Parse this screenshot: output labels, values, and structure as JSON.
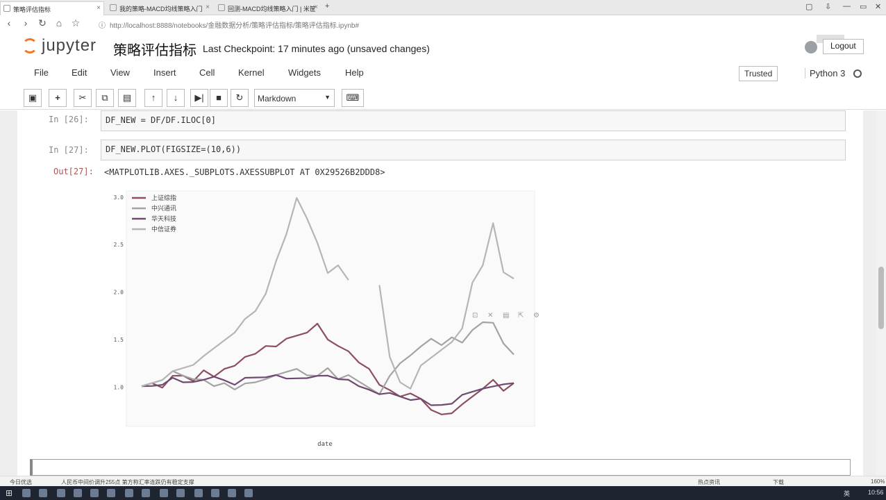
{
  "browser": {
    "tabs": [
      {
        "title": "策略评估指标",
        "active": true
      },
      {
        "title": "我的策略-MACD均线策略入门",
        "active": false
      },
      {
        "title": "回测-MACD均线策略入门 | 米筐",
        "active": false
      }
    ],
    "url": "http://localhost:8888/notebooks/金融数据分析/策略评估指标/策略评估指标.ipynb#",
    "url_host": "localhost"
  },
  "header": {
    "logo_text": "jupyter",
    "notebook_name": "策略评估指标",
    "checkpoint": "Last Checkpoint: 17 minutes ago (unsaved changes)",
    "logout_label": "Logout"
  },
  "menubar": {
    "items": [
      "File",
      "Edit",
      "View",
      "Insert",
      "Cell",
      "Kernel",
      "Widgets",
      "Help"
    ],
    "trusted_label": "Trusted",
    "kernel_label": "Python 3"
  },
  "toolbar": {
    "cell_type": "Markdown"
  },
  "cells": [
    {
      "prompt": "In  [26]:",
      "code": "DF_NEW = DF/DF.ILOC[0]"
    },
    {
      "prompt": "In  [27]:",
      "code": "DF_NEW.PLOT(FIGSIZE=(10,6))"
    }
  ],
  "output": {
    "prompt": "Out[27]:",
    "text": "<MATPLOTLIB.AXES._SUBPLOTS.AXESSUBPLOT AT 0X29526B2DDD8>"
  },
  "chart_data": {
    "type": "line",
    "xlabel": "date",
    "ylabel": "",
    "ylim": [
      0.6,
      3.05
    ],
    "yticks": [
      "3.0",
      "2.5",
      "2.0",
      "1.5",
      "1.0"
    ],
    "legend_position": "upper-left",
    "series": [
      {
        "name": "上证综指",
        "color": "#8c4f5f",
        "values": [
          1.0,
          1.05,
          1.02,
          1.1,
          1.12,
          1.08,
          1.15,
          1.1,
          1.2,
          1.25,
          1.3,
          1.35,
          1.45,
          1.4,
          1.5,
          1.55,
          1.6,
          1.65,
          1.5,
          1.45,
          1.35,
          1.25,
          1.2,
          1.05,
          0.95,
          0.9,
          0.95,
          0.85,
          0.75,
          0.72,
          0.75,
          0.8,
          0.9,
          1.0,
          1.05,
          0.95,
          1.05
        ]
      },
      {
        "name": "中兴通讯",
        "color": "#a3a3a3",
        "values": [
          1.0,
          1.05,
          1.1,
          1.15,
          1.12,
          1.1,
          1.05,
          1.0,
          1.05,
          1.0,
          1.02,
          1.05,
          1.1,
          1.1,
          1.15,
          1.2,
          1.15,
          1.1,
          1.2,
          1.1,
          1.1,
          1.05,
          1.0,
          0.95,
          1.1,
          1.25,
          1.35,
          1.4,
          1.5,
          1.45,
          1.55,
          1.45,
          1.6,
          1.7,
          1.65,
          1.45,
          1.35
        ]
      },
      {
        "name": "华天科技",
        "color": "#6e4a70",
        "values": [
          1.0,
          1.02,
          1.05,
          1.08,
          1.05,
          1.07,
          1.05,
          1.1,
          1.08,
          1.05,
          1.08,
          1.1,
          1.12,
          1.1,
          1.08,
          1.1,
          1.12,
          1.1,
          1.12,
          1.1,
          1.05,
          1.0,
          0.98,
          0.95,
          0.92,
          0.9,
          0.88,
          0.85,
          0.8,
          0.82,
          0.85,
          0.9,
          0.95,
          1.0,
          0.98,
          1.02,
          1.05
        ]
      },
      {
        "name": "中信证券",
        "color": "#b5b5b5",
        "values": [
          1.0,
          1.05,
          1.1,
          1.15,
          1.2,
          1.25,
          1.3,
          1.4,
          1.5,
          1.6,
          1.7,
          1.8,
          2.0,
          2.3,
          2.6,
          3.0,
          2.8,
          2.5,
          2.2,
          2.3,
          2.1,
          null,
          null,
          2.1,
          1.3,
          1.05,
          1.0,
          1.2,
          1.3,
          1.4,
          1.5,
          1.6,
          2.1,
          2.3,
          2.7,
          2.2,
          2.15
        ]
      }
    ]
  },
  "status": {
    "left": "今日优选",
    "news": "人民币中间价调升255点 第方称汇率连跌仍有稳定支撑",
    "right_items": [
      "热点资讯",
      "下载",
      "160%"
    ]
  },
  "taskbar": {
    "clock": "10:56",
    "ime": "英"
  },
  "icons": {
    "save": "save-icon",
    "add": "plus-icon",
    "cut": "scissors-icon",
    "copy": "copy-icon",
    "paste": "paste-icon",
    "up": "arrow-up-icon",
    "down": "arrow-down-icon",
    "run": "run-icon",
    "stop": "stop-icon",
    "restart": "restart-icon",
    "keyboard": "keyboard-icon"
  }
}
